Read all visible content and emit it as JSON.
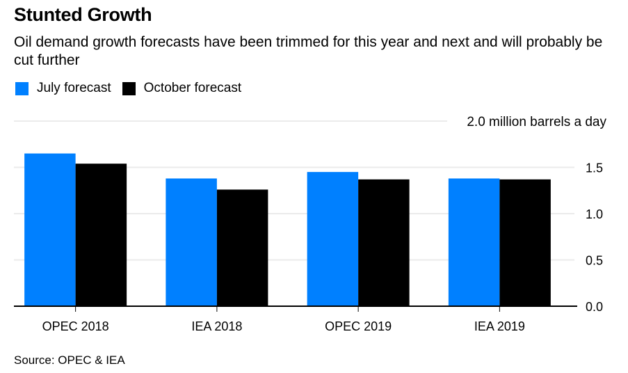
{
  "header": {
    "title": "Stunted Growth",
    "subtitle": "Oil demand growth forecasts have been trimmed for this year and next and will probably be cut further"
  },
  "footer": {
    "source": "Source: OPEC & IEA"
  },
  "chart_data": {
    "type": "bar",
    "title": "Stunted Growth",
    "subtitle": "Oil demand growth forecasts have been trimmed for this year and next and will probably be cut further",
    "xlabel": "",
    "ylabel": "million barrels a day",
    "unit_label": "2.0 million barrels a day",
    "categories": [
      "OPEC 2018",
      "IEA 2018",
      "OPEC 2019",
      "IEA 2019"
    ],
    "series": [
      {
        "name": "July forecast",
        "color": "#0080ff",
        "values": [
          1.65,
          1.38,
          1.45,
          1.38
        ]
      },
      {
        "name": "October forecast",
        "color": "#000000",
        "values": [
          1.54,
          1.26,
          1.37,
          1.37
        ]
      }
    ],
    "ylim": [
      0,
      2.0
    ],
    "yticks": [
      0.0,
      0.5,
      1.0,
      1.5,
      2.0
    ],
    "ytick_labels": [
      "0.0",
      "0.5",
      "1.0",
      "1.5",
      "2.0"
    ],
    "y_axis_position": "right",
    "grid": true,
    "legend_position": "top-left",
    "source": "Source: OPEC & IEA"
  }
}
